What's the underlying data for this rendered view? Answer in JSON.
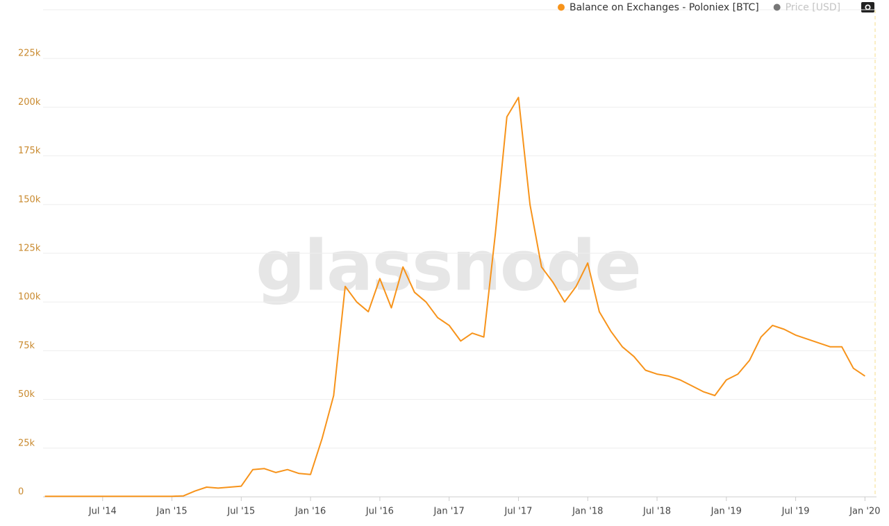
{
  "chart_data": {
    "type": "line",
    "watermark": "glassnode",
    "x": [
      "2014-02",
      "2014-03",
      "2014-04",
      "2014-05",
      "2014-06",
      "2014-07",
      "2014-08",
      "2014-09",
      "2014-10",
      "2014-11",
      "2014-12",
      "2015-01",
      "2015-02",
      "2015-03",
      "2015-04",
      "2015-05",
      "2015-06",
      "2015-07",
      "2015-08",
      "2015-09",
      "2015-10",
      "2015-11",
      "2015-12",
      "2016-01",
      "2016-02",
      "2016-03",
      "2016-04",
      "2016-05",
      "2016-06",
      "2016-07",
      "2016-08",
      "2016-09",
      "2016-10",
      "2016-11",
      "2016-12",
      "2017-01",
      "2017-02",
      "2017-03",
      "2017-04",
      "2017-05",
      "2017-06",
      "2017-07",
      "2017-08",
      "2017-09",
      "2017-10",
      "2017-11",
      "2017-12",
      "2018-01",
      "2018-02",
      "2018-03",
      "2018-04",
      "2018-05",
      "2018-06",
      "2018-07",
      "2018-08",
      "2018-09",
      "2018-10",
      "2018-11",
      "2018-12",
      "2019-01",
      "2019-02",
      "2019-03",
      "2019-04",
      "2019-05",
      "2019-06",
      "2019-07",
      "2019-08",
      "2019-09",
      "2019-10",
      "2019-11",
      "2019-12",
      "2020-01"
    ],
    "series": [
      {
        "name": "Balance on Exchanges - Poloniex [BTC]",
        "color": "#f7931a",
        "values": [
          300,
          300,
          300,
          300,
          300,
          300,
          300,
          300,
          300,
          300,
          300,
          300,
          500,
          3000,
          5000,
          4500,
          5000,
          5500,
          14000,
          14500,
          12500,
          14000,
          12000,
          11500,
          30000,
          52000,
          108000,
          100000,
          95000,
          112000,
          97000,
          118000,
          105000,
          100000,
          92000,
          88000,
          80000,
          84000,
          82000,
          135000,
          195000,
          205000,
          150000,
          118000,
          110000,
          100000,
          108000,
          120000,
          95000,
          85000,
          77000,
          72000,
          65000,
          63000,
          62000,
          60000,
          57000,
          54000,
          52000,
          60000,
          63000,
          70000,
          82000,
          88000,
          86000,
          83000,
          81000,
          79000,
          77000,
          77000,
          66000,
          62000
        ]
      }
    ],
    "hidden_series": [
      {
        "name": "Price [USD]",
        "color": "#777777"
      }
    ],
    "xlim": [
      "2014-01",
      "2020-02"
    ],
    "xticks": [
      {
        "value": "2014-07",
        "label": "Jul '14"
      },
      {
        "value": "2015-01",
        "label": "Jan '15"
      },
      {
        "value": "2015-07",
        "label": "Jul '15"
      },
      {
        "value": "2016-01",
        "label": "Jan '16"
      },
      {
        "value": "2016-07",
        "label": "Jul '16"
      },
      {
        "value": "2017-01",
        "label": "Jan '17"
      },
      {
        "value": "2017-07",
        "label": "Jul '17"
      },
      {
        "value": "2018-01",
        "label": "Jan '18"
      },
      {
        "value": "2018-07",
        "label": "Jul '18"
      },
      {
        "value": "2019-01",
        "label": "Jan '19"
      },
      {
        "value": "2019-07",
        "label": "Jul '19"
      },
      {
        "value": "2020-01",
        "label": "Jan '20"
      }
    ],
    "ylim": [
      0,
      250000
    ],
    "yticks": [
      0,
      {
        "value": 25000,
        "label": "25k"
      },
      {
        "value": 50000,
        "label": "50k"
      },
      {
        "value": 75000,
        "label": "75k"
      },
      {
        "value": 100000,
        "label": "100k"
      },
      {
        "value": 125000,
        "label": "125k"
      },
      {
        "value": 150000,
        "label": "150k"
      },
      {
        "value": 175000,
        "label": "175k"
      },
      {
        "value": 200000,
        "label": "200k"
      },
      {
        "value": 225000,
        "label": "225k"
      }
    ],
    "grid": true
  }
}
